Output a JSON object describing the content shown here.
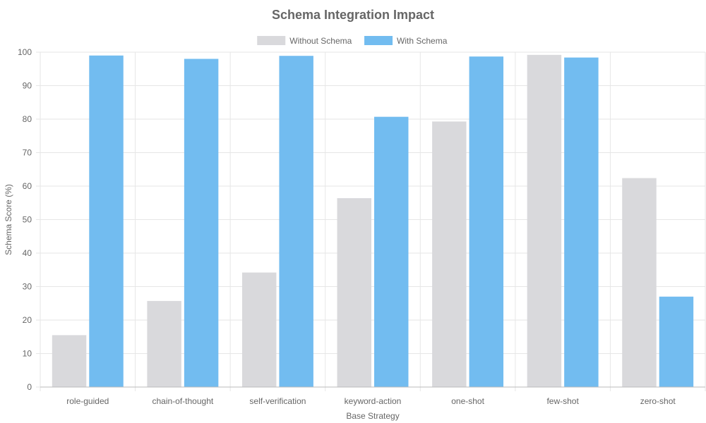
{
  "chart_data": {
    "type": "bar",
    "title": "Schema Integration Impact",
    "xlabel": "Base Strategy",
    "ylabel": "Schema Score (%)",
    "ylim": [
      0,
      100
    ],
    "yticks": [
      0,
      10,
      20,
      30,
      40,
      50,
      60,
      70,
      80,
      90,
      100
    ],
    "categories": [
      "role-guided",
      "chain-of-thought",
      "self-verification",
      "keyword-action",
      "one-shot",
      "few-shot",
      "zero-shot"
    ],
    "series": [
      {
        "name": "Without Schema",
        "color": "#d9d9dc",
        "values": [
          15.5,
          25.7,
          34.2,
          56.4,
          79.3,
          99.2,
          62.4
        ]
      },
      {
        "name": "With Schema",
        "color": "#72bcf0",
        "values": [
          99.0,
          98.0,
          98.9,
          80.7,
          98.7,
          98.4,
          27.0
        ]
      }
    ],
    "legend_position": "top-center",
    "grid": true
  }
}
